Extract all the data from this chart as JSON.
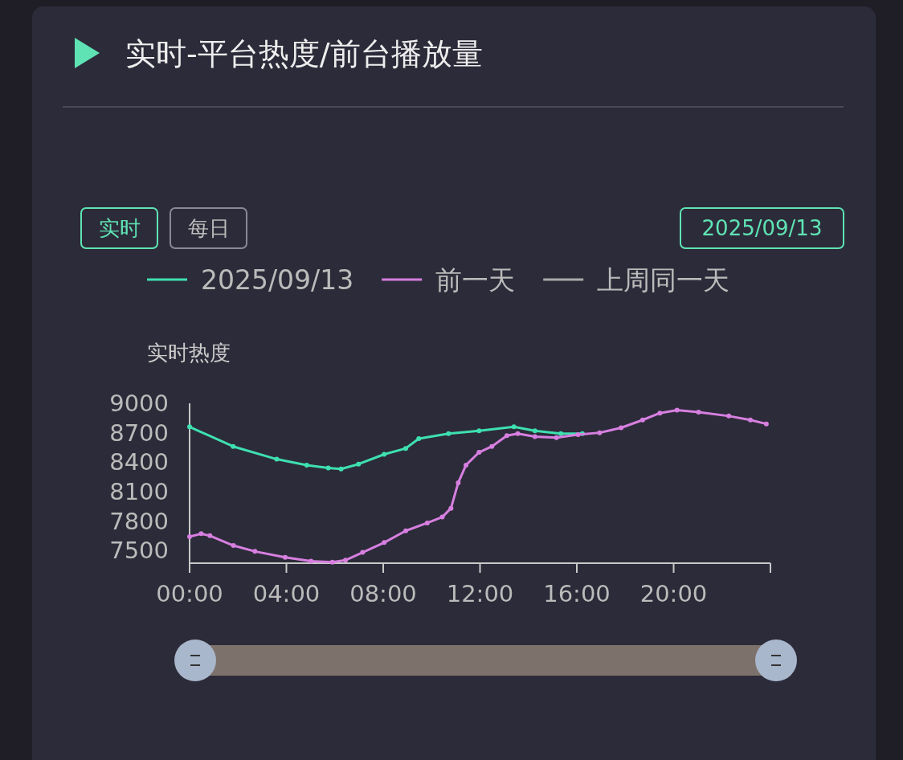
{
  "chart_data": {
    "type": "line",
    "title": "实时-平台热度/前台播放量",
    "ylabel": "实时热度",
    "annotations": [
      "实时",
      "每日",
      "2025/09/13"
    ],
    "xlim": [
      0,
      24
    ],
    "xticks": [
      {
        "value": 0,
        "label": "00:00"
      },
      {
        "value": 4,
        "label": "04:00"
      },
      {
        "value": 8,
        "label": "08:00"
      },
      {
        "value": 12,
        "label": "12:00"
      },
      {
        "value": 16,
        "label": "16:00"
      },
      {
        "value": 20,
        "label": "20:00"
      },
      {
        "value": 24,
        "label": null
      }
    ],
    "ylim": [
      7370,
      9000
    ],
    "yticks": [
      7500,
      7800,
      8100,
      8400,
      8700,
      9000
    ],
    "grid": false,
    "legend": "top",
    "marker": "circle",
    "line_style": "solid",
    "series": [
      {
        "name": "2025/09/13",
        "color": "#3ee0b0",
        "x": [
          0,
          1.8,
          3.6,
          4.84,
          5.73,
          6.26,
          6.98,
          8.04,
          8.93,
          9.47,
          10.7,
          11.96,
          13.4,
          14.27,
          15.34,
          16.23
        ],
        "values": [
          8760,
          8560,
          8430,
          8370,
          8340,
          8330,
          8380,
          8480,
          8540,
          8640,
          8690,
          8720,
          8760,
          8720,
          8690,
          8690
        ]
      },
      {
        "name": "前一天",
        "color": "#d77fe0",
        "x": [
          0,
          0.48,
          0.84,
          1.81,
          2.7,
          3.95,
          5.02,
          5.9,
          6.44,
          7.15,
          8.04,
          8.93,
          9.82,
          10.44,
          10.8,
          11.1,
          11.42,
          11.96,
          12.49,
          13.11,
          13.56,
          14.27,
          15.16,
          16.05,
          16.94,
          17.83,
          18.72,
          19.43,
          20.14,
          21.03,
          22.28,
          23.17,
          23.83
        ],
        "values": [
          7640,
          7670,
          7650,
          7550,
          7490,
          7430,
          7390,
          7380,
          7400,
          7480,
          7580,
          7700,
          7780,
          7840,
          7930,
          8190,
          8370,
          8500,
          8560,
          8670,
          8690,
          8660,
          8650,
          8680,
          8700,
          8750,
          8830,
          8900,
          8930,
          8910,
          8870,
          8830,
          8790
        ]
      },
      {
        "name": "上周同一天",
        "color": "#aaaaaa"
      }
    ]
  }
}
